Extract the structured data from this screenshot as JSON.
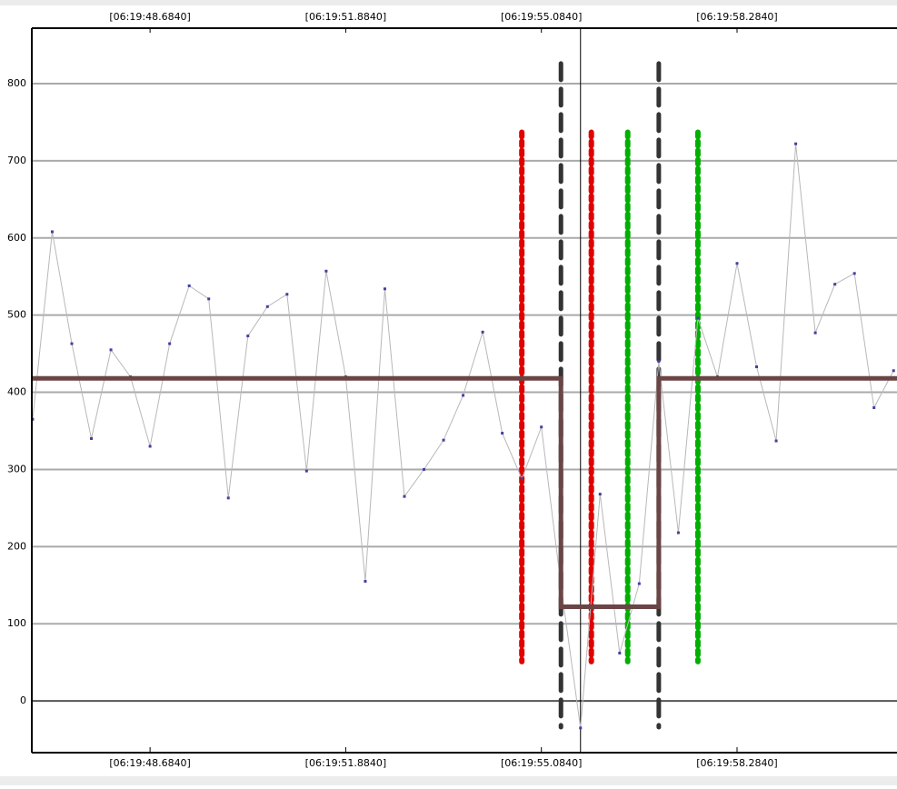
{
  "chart_data": {
    "type": "line",
    "xlim": [
      46.75,
      60.9
    ],
    "ylim": [
      -67,
      873
    ],
    "xticks": [
      {
        "value": 48.684,
        "label": "[06:19:48.6840]"
      },
      {
        "value": 51.884,
        "label": "[06:19:51.8840]"
      },
      {
        "value": 55.084,
        "label": "[06:19:55.0840]"
      },
      {
        "value": 58.284,
        "label": "[06:19:58.2840]"
      }
    ],
    "yticks": [
      0,
      100,
      200,
      300,
      400,
      500,
      600,
      700,
      800
    ],
    "grid": true,
    "series": [
      {
        "color": "#4040a0",
        "x": [
          46.764,
          47.084,
          47.404,
          47.724,
          48.044,
          48.364,
          48.684,
          49.004,
          49.324,
          49.644,
          49.964,
          50.284,
          50.604,
          50.924,
          51.244,
          51.564,
          51.884,
          52.204,
          52.524,
          52.844,
          53.164,
          53.484,
          53.804,
          54.124,
          54.444,
          54.764,
          55.084,
          55.404,
          55.724,
          56.044,
          56.364,
          56.684,
          57.004,
          57.324,
          57.644,
          57.964,
          58.284,
          58.604,
          58.924,
          59.244,
          59.564,
          59.884,
          60.204,
          60.524,
          60.844
        ],
        "values": [
          365,
          608,
          463,
          340,
          455,
          420,
          330,
          463,
          538,
          521,
          263,
          473,
          511,
          527,
          298,
          557,
          420,
          155,
          534,
          265,
          300,
          338,
          396,
          478,
          347,
          288,
          355,
          150,
          -35,
          268,
          62,
          152,
          440,
          218,
          496,
          420,
          567,
          433,
          337,
          722,
          477,
          540,
          554,
          380,
          428
        ]
      },
      {
        "color": "#6b4545",
        "x": [
          46.75,
          55.404,
          55.404,
          57.004,
          57.004,
          60.9
        ],
        "values": [
          418,
          418,
          122,
          122,
          418,
          418
        ]
      }
    ],
    "markers": [
      {
        "x": 54.764,
        "ymin": 51,
        "ymax": 737,
        "color": "#e00000"
      },
      {
        "x": 55.901,
        "ymin": 51,
        "ymax": 737,
        "color": "#e00000"
      },
      {
        "x": 56.496,
        "ymin": 51,
        "ymax": 737,
        "color": "#00b000"
      },
      {
        "x": 57.644,
        "ymin": 51,
        "ymax": 737,
        "color": "#00b000"
      },
      {
        "x": 55.404,
        "ymin": -34,
        "ymax": 826,
        "color": "#333333"
      },
      {
        "x": 57.004,
        "ymin": -34,
        "ymax": 826,
        "color": "#333333"
      }
    ],
    "cursor_x": 55.724
  }
}
